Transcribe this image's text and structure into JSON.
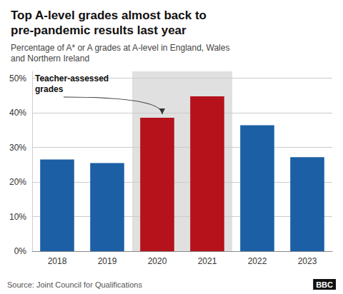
{
  "chart_data": {
    "type": "bar",
    "title": "Top A-level grades almost back to\npre-pandemic results last year",
    "subtitle": "Percentage of A* or A grades at A-level in England, Wales\nand Northern Ireland",
    "categories": [
      "2018",
      "2019",
      "2020",
      "2021",
      "2022",
      "2023"
    ],
    "values": [
      26.5,
      25.5,
      38.6,
      44.8,
      36.4,
      27.2
    ],
    "colors": [
      "#1c5fa5",
      "#1c5fa5",
      "#b5121b",
      "#b5121b",
      "#1c5fa5",
      "#1c5fa5"
    ],
    "ylim": [
      0,
      52
    ],
    "yticks": [
      {
        "value": 0,
        "label": "0%"
      },
      {
        "value": 10,
        "label": "10%"
      },
      {
        "value": 20,
        "label": "20%"
      },
      {
        "value": 30,
        "label": "30%"
      },
      {
        "value": 40,
        "label": "40%"
      },
      {
        "value": 50,
        "label": "50%"
      }
    ],
    "grid": true,
    "annotations": [
      {
        "text": "Teacher-assessed\ngrades",
        "categories": [
          "2020",
          "2021"
        ]
      }
    ],
    "source": "Source: Joint Council for Qualifications",
    "credit": "BBC"
  }
}
